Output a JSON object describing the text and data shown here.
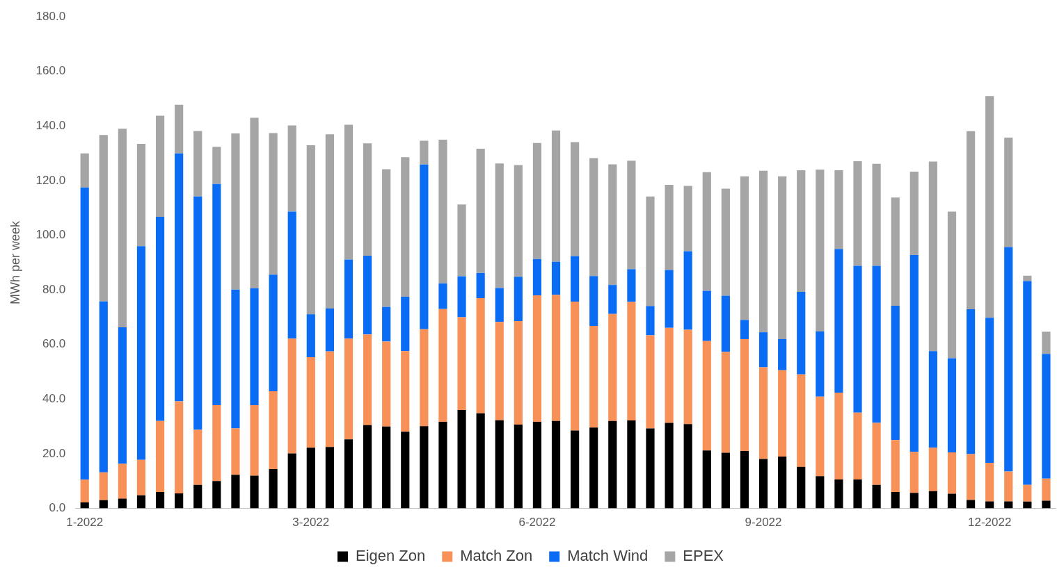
{
  "chart_data": {
    "type": "bar",
    "stacked": true,
    "ylabel": "MWh per week",
    "categories": [
      "1-2022",
      null,
      null,
      null,
      null,
      null,
      null,
      null,
      null,
      null,
      null,
      null,
      "3-2022",
      null,
      null,
      null,
      null,
      null,
      null,
      null,
      null,
      null,
      null,
      null,
      "6-2022",
      null,
      null,
      null,
      null,
      null,
      null,
      null,
      null,
      null,
      null,
      null,
      "9-2022",
      null,
      null,
      null,
      null,
      null,
      null,
      null,
      null,
      null,
      null,
      null,
      "12-2022",
      null,
      null,
      null
    ],
    "series": [
      {
        "name": "Eigen Zon",
        "color": "#000000",
        "values": [
          2.2,
          3.0,
          3.6,
          4.8,
          6.0,
          5.5,
          8.6,
          10.0,
          12.3,
          12.0,
          14.4,
          20.1,
          22.2,
          22.5,
          25.3,
          30.5,
          30.0,
          28.1,
          30.1,
          31.7,
          36.0,
          34.8,
          32.3,
          30.7,
          31.7,
          32.0,
          28.5,
          29.6,
          32.0,
          32.2,
          29.3,
          31.3,
          30.9,
          21.2,
          20.4,
          21.0,
          18.1,
          19.0,
          15.2,
          11.8,
          10.6,
          10.6,
          8.6,
          6.0,
          5.7,
          6.3,
          5.4,
          3.1,
          2.6,
          2.6,
          2.5,
          2.8
        ]
      },
      {
        "name": "Match Zon",
        "color": "#f79158",
        "values": [
          8.3,
          10.2,
          12.7,
          13.0,
          26.0,
          33.7,
          20.2,
          27.8,
          17.0,
          25.8,
          28.5,
          42.1,
          33.2,
          35.0,
          36.9,
          33.2,
          31.1,
          29.5,
          35.5,
          41.3,
          34.0,
          42.2,
          36.0,
          37.9,
          46.3,
          46.2,
          47.2,
          37.2,
          39.2,
          43.4,
          34.1,
          34.8,
          34.5,
          40.1,
          36.9,
          41.0,
          33.6,
          31.6,
          33.9,
          29.1,
          31.8,
          24.5,
          22.7,
          19.0,
          15.0,
          15.9,
          15.1,
          16.8,
          14.1,
          10.9,
          6.1,
          8.1
        ]
      },
      {
        "name": "Match Wind",
        "color": "#0a6cf5",
        "values": [
          107.0,
          62.6,
          50.0,
          78.2,
          74.8,
          90.8,
          85.4,
          81.0,
          50.8,
          42.8,
          42.7,
          46.5,
          15.7,
          15.7,
          28.9,
          28.8,
          12.7,
          19.9,
          60.3,
          9.4,
          15.0,
          9.2,
          12.4,
          16.2,
          13.3,
          12.1,
          16.7,
          18.3,
          10.6,
          12.0,
          10.7,
          21.2,
          28.8,
          18.4,
          20.6,
          7.0,
          12.8,
          11.4,
          30.2,
          23.9,
          52.6,
          53.7,
          57.5,
          49.2,
          72.1,
          35.4,
          34.5,
          53.0,
          53.1,
          82.2,
          74.6,
          45.7
        ]
      },
      {
        "name": "EPEX",
        "color": "#a5a5a5",
        "values": [
          12.5,
          60.9,
          72.7,
          37.5,
          37.0,
          17.8,
          24.0,
          13.6,
          57.2,
          62.4,
          51.8,
          31.5,
          61.9,
          63.8,
          49.4,
          41.2,
          50.4,
          51.1,
          8.7,
          52.6,
          26.3,
          45.5,
          45.6,
          40.9,
          42.5,
          48.1,
          41.7,
          43.2,
          44.2,
          39.7,
          40.1,
          31.2,
          23.9,
          43.4,
          39.2,
          52.6,
          59.1,
          59.6,
          44.5,
          59.3,
          28.8,
          38.3,
          37.4,
          39.6,
          30.5,
          69.4,
          53.7,
          65.2,
          81.2,
          40.1,
          2.0,
          8.1
        ]
      }
    ],
    "ylim": [
      0,
      180
    ],
    "yticks": [
      {
        "value": 0,
        "label": "0.0"
      },
      {
        "value": 20,
        "label": "20.0"
      },
      {
        "value": 40,
        "label": "40.0"
      },
      {
        "value": 60,
        "label": "60.0"
      },
      {
        "value": 80,
        "label": "80.0"
      },
      {
        "value": 100,
        "label": "100.0"
      },
      {
        "value": 120,
        "label": "120.0"
      },
      {
        "value": 140,
        "label": "140.0"
      },
      {
        "value": 160,
        "label": "160.0"
      },
      {
        "value": 180,
        "label": "180.0"
      }
    ],
    "grid": false,
    "legend": "bottom"
  }
}
